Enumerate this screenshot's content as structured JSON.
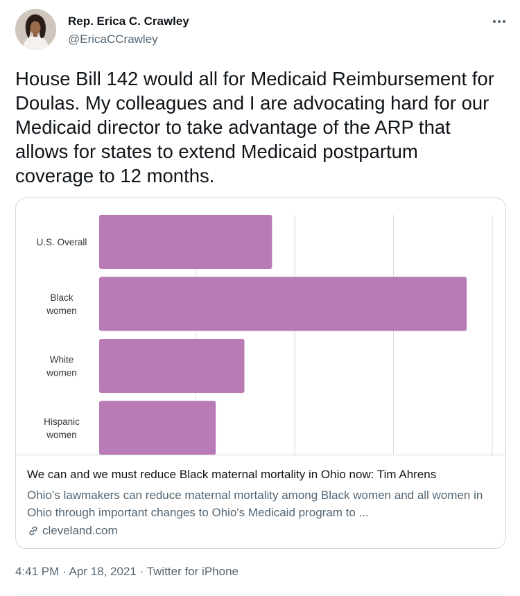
{
  "author": {
    "name": "Rep. Erica C. Crawley",
    "handle": "@EricaCCrawley"
  },
  "tweet": {
    "text": "House Bill 142 would all for Medicaid Reimbursement for Doulas. My colleagues and I are advocating hard for our Medicaid director to take advantage of the ARP that allows for states to extend Medicaid postpartum coverage to 12 months."
  },
  "card": {
    "title": "We can and we must reduce Black maternal mortality in Ohio now: Tim Ahrens",
    "description": "Ohio’s lawmakers can reduce maternal mortality among Black women and all women in Ohio through important changes to Ohio's Medicaid program to ...",
    "domain": "cleveland.com",
    "link_icon": "link-icon"
  },
  "meta": {
    "time": "4:41 PM",
    "separator": "·",
    "date": "Apr 18, 2021",
    "source": "Twitter for iPhone"
  },
  "icons": {
    "more": "more-horizontal-icon"
  },
  "colors": {
    "bar": "#b87bb5",
    "link_blue": "#1d9bf0",
    "secondary_text": "#536471"
  },
  "chart_data": {
    "type": "bar",
    "orientation": "horizontal",
    "categories": [
      [
        "U.S. Overall"
      ],
      [
        "Black",
        "women"
      ],
      [
        "White",
        "women"
      ],
      [
        "Hispanic",
        "women"
      ]
    ],
    "values": [
      17.5,
      37.2,
      14.7,
      11.8
    ],
    "xlim": [
      0,
      40
    ],
    "grid": true,
    "title": "",
    "xlabel": "",
    "ylabel": ""
  }
}
